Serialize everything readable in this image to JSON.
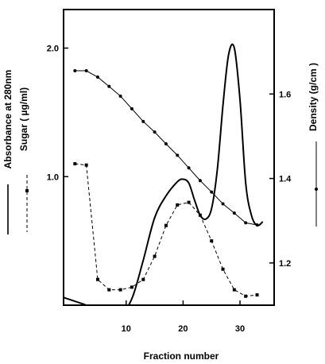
{
  "chart_data": {
    "type": "line",
    "xlabel": "Fraction number",
    "x_ticks": [
      "10",
      "20",
      "30"
    ],
    "xlim": [
      -1,
      36
    ],
    "left_axis": {
      "ylim": [
        0.0,
        2.3
      ],
      "ticks": [
        "1.0",
        "2.0"
      ],
      "labels": [
        "Absorbance at 280nm",
        "Sugar ( µg/ml)"
      ]
    },
    "right_axis": {
      "ylim": [
        1.1,
        1.8
      ],
      "ticks": [
        "1.2",
        "1.4",
        "1.6"
      ],
      "label": "Density (g/cm )"
    },
    "series": [
      {
        "name": "Absorbance at 280nm",
        "axis": "left",
        "style": "solid",
        "x": [
          -1,
          3,
          6,
          9,
          11,
          13,
          15,
          17,
          19,
          20,
          21,
          22,
          23,
          24,
          25,
          26,
          27,
          28,
          29,
          30,
          31,
          32,
          33,
          34
        ],
        "y": [
          0.06,
          0.0,
          -0.06,
          -0.06,
          0.05,
          0.35,
          0.68,
          0.85,
          0.96,
          0.98,
          0.95,
          0.82,
          0.7,
          0.67,
          0.75,
          1.05,
          1.55,
          1.95,
          2.0,
          1.6,
          0.95,
          0.7,
          0.62,
          0.65
        ]
      },
      {
        "name": "Sugar ( µg/ml)",
        "axis": "left",
        "style": "dashed",
        "x": [
          1,
          3,
          5,
          7,
          9,
          11,
          13,
          15,
          17,
          19,
          21,
          23,
          25,
          27,
          29,
          31,
          33
        ],
        "y": [
          1.1,
          1.09,
          0.2,
          0.12,
          0.12,
          0.14,
          0.2,
          0.38,
          0.62,
          0.78,
          0.8,
          0.7,
          0.5,
          0.28,
          0.12,
          0.07,
          0.08
        ]
      },
      {
        "name": "Density (g/cm )",
        "axis": "right",
        "style": "solid",
        "x": [
          1,
          3,
          5,
          7,
          9,
          11,
          13,
          15,
          17,
          19,
          21,
          23,
          25,
          27,
          29,
          31,
          33
        ],
        "y": [
          1.655,
          1.655,
          1.64,
          1.618,
          1.595,
          1.565,
          1.535,
          1.51,
          1.482,
          1.455,
          1.425,
          1.395,
          1.368,
          1.34,
          1.318,
          1.295,
          1.29
        ]
      }
    ]
  }
}
